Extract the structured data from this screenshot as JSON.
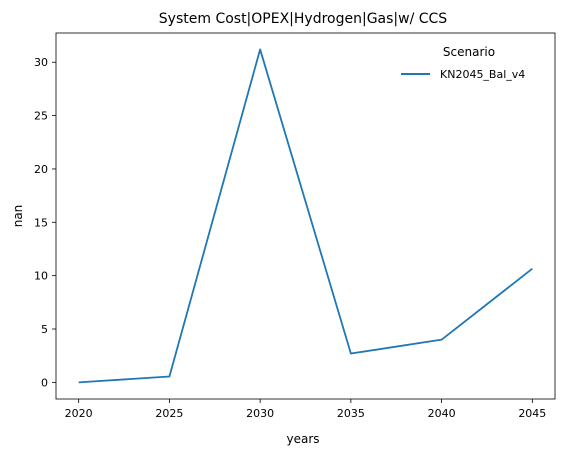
{
  "chart_data": {
    "type": "line",
    "title": "System Cost|OPEX|Hydrogen|Gas|w/ CCS",
    "xlabel": "years",
    "ylabel": "nan",
    "x": [
      2020,
      2025,
      2030,
      2035,
      2040,
      2045
    ],
    "xticks": [
      2020,
      2025,
      2030,
      2035,
      2040,
      2045
    ],
    "xlim": [
      2018.75,
      2046.25
    ],
    "ylim": [
      -1.56,
      32.74
    ],
    "yticks": [
      0,
      5,
      10,
      15,
      20,
      25,
      30
    ],
    "grid": false,
    "legend": {
      "title": "Scenario",
      "placement": "top-right"
    },
    "series": [
      {
        "name": "KN2045_Bal_v4",
        "color": "#1f77b4",
        "values": [
          0.0,
          0.55,
          31.2,
          2.7,
          4.0,
          10.65
        ]
      }
    ]
  }
}
